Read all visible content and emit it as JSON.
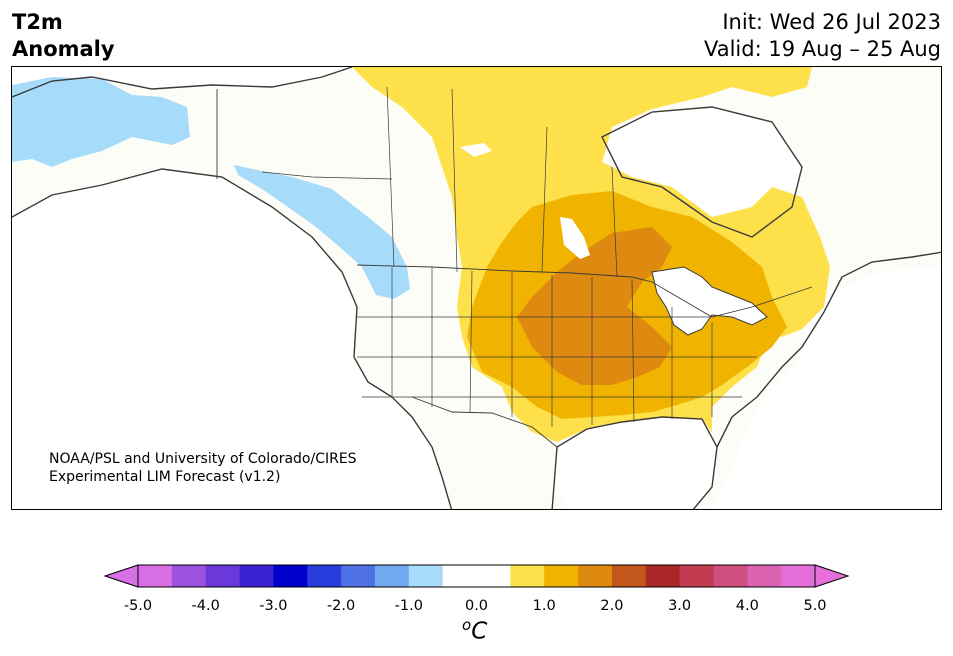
{
  "title": {
    "left_line1": "T2m",
    "left_line2": "Anomaly",
    "init": "Init: Wed 26 Jul 2023",
    "valid": "Valid: 19 Aug – 25 Aug"
  },
  "credit": {
    "line1": "NOAA/PSL and University of Colorado/CIRES",
    "line2": "Experimental LIM Forecast (v1.2)"
  },
  "colorbar": {
    "unit": "C",
    "unit_prefix": "o",
    "ticks": [
      "-5.0",
      "-4.0",
      "-3.0",
      "-2.0",
      "-1.0",
      "0.0",
      "1.0",
      "2.0",
      "3.0",
      "4.0",
      "5.0"
    ],
    "colors": [
      "#d86fe6",
      "#9b52dd",
      "#6b38d9",
      "#3a22d0",
      "#0000cc",
      "#2a3edd",
      "#4f71e6",
      "#72a8f0",
      "#a6dbfa",
      "#ffffff",
      "#ffffff",
      "#fde04a",
      "#f0b400",
      "#de8a10",
      "#c3561a",
      "#ab2626",
      "#c03a50",
      "#d04f7e",
      "#dc62b2",
      "#e46fd8"
    ],
    "under_color": "#d86fe6",
    "over_color": "#e46fd8"
  },
  "map": {
    "colors": {
      "cool_light": "#a6dbfa",
      "warm_1": "#fde04a",
      "warm_2": "#f0b400",
      "warm_3": "#de8a10",
      "land_neutral": "#fdfdf8",
      "coast": "#3a3a3a"
    }
  }
}
